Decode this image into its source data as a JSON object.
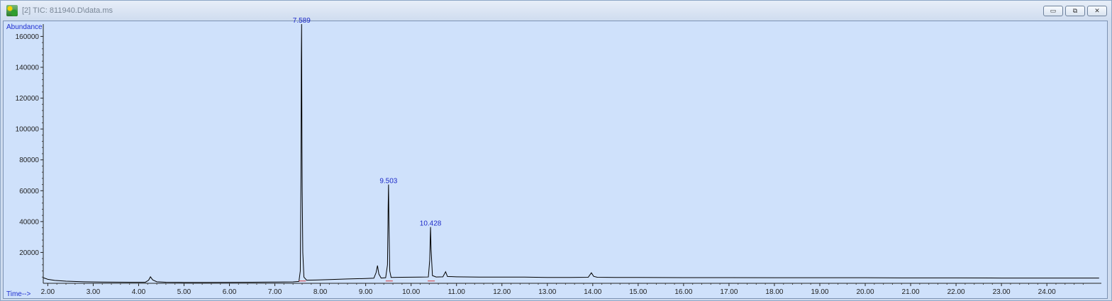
{
  "window": {
    "title": "[2] TIC: 811940.D\\data.ms",
    "buttons": [
      "minimize-icon",
      "restore-icon",
      "close-icon"
    ],
    "colors": {
      "plot_bg": "#cfe1fb",
      "trace": "#000000",
      "labels": "#1f2fd0"
    }
  },
  "chart_data": {
    "type": "line",
    "title": "",
    "xlabel": "Time-->",
    "ylabel": "Abundance",
    "xlim": [
      1.9,
      25.2
    ],
    "ylim": [
      0,
      168000
    ],
    "x_ticks": [
      "2.00",
      "3.00",
      "4.00",
      "5.00",
      "6.00",
      "7.00",
      "8.00",
      "9.00",
      "10.00",
      "11.00",
      "12.00",
      "13.00",
      "14.00",
      "15.00",
      "16.00",
      "17.00",
      "18.00",
      "19.00",
      "20.00",
      "21.00",
      "22.00",
      "23.00",
      "24.00"
    ],
    "y_ticks": [
      "20000",
      "40000",
      "60000",
      "80000",
      "100000",
      "120000",
      "140000",
      "160000"
    ],
    "grid": false,
    "series": [
      {
        "points": [
          [
            1.9,
            3600
          ],
          [
            2.0,
            2600
          ],
          [
            2.15,
            1900
          ],
          [
            2.4,
            1400
          ],
          [
            2.8,
            1000
          ],
          [
            3.2,
            800
          ],
          [
            3.8,
            700
          ],
          [
            4.15,
            700
          ],
          [
            4.22,
            2000
          ],
          [
            4.26,
            4200
          ],
          [
            4.31,
            2200
          ],
          [
            4.4,
            1000
          ],
          [
            4.6,
            700
          ],
          [
            5.0,
            600
          ],
          [
            5.5,
            600
          ],
          [
            6.0,
            650
          ],
          [
            6.5,
            700
          ],
          [
            7.0,
            800
          ],
          [
            7.4,
            900
          ],
          [
            7.53,
            1200
          ],
          [
            7.56,
            8000
          ],
          [
            7.575,
            70000
          ],
          [
            7.583,
            145000
          ],
          [
            7.589,
            168000
          ],
          [
            7.595,
            106000
          ],
          [
            7.602,
            60000
          ],
          [
            7.615,
            20000
          ],
          [
            7.64,
            4000
          ],
          [
            7.7,
            2000
          ],
          [
            7.9,
            2100
          ],
          [
            8.2,
            2400
          ],
          [
            8.6,
            2800
          ],
          [
            9.0,
            3100
          ],
          [
            9.18,
            3300
          ],
          [
            9.23,
            7000
          ],
          [
            9.26,
            11500
          ],
          [
            9.29,
            6000
          ],
          [
            9.34,
            3400
          ],
          [
            9.44,
            3600
          ],
          [
            9.48,
            12000
          ],
          [
            9.495,
            50000
          ],
          [
            9.503,
            64000
          ],
          [
            9.512,
            40000
          ],
          [
            9.53,
            8000
          ],
          [
            9.56,
            3800
          ],
          [
            9.8,
            3900
          ],
          [
            10.2,
            4000
          ],
          [
            10.38,
            4100
          ],
          [
            10.41,
            15000
          ],
          [
            10.428,
            36500
          ],
          [
            10.44,
            22000
          ],
          [
            10.47,
            5000
          ],
          [
            10.55,
            4100
          ],
          [
            10.7,
            4200
          ],
          [
            10.76,
            7500
          ],
          [
            10.8,
            4400
          ],
          [
            11.0,
            4200
          ],
          [
            11.5,
            4000
          ],
          [
            12.0,
            4000
          ],
          [
            12.5,
            4000
          ],
          [
            13.0,
            3800
          ],
          [
            13.5,
            3800
          ],
          [
            13.9,
            3900
          ],
          [
            13.97,
            6800
          ],
          [
            14.02,
            4500
          ],
          [
            14.1,
            3900
          ],
          [
            14.5,
            3800
          ],
          [
            15.0,
            3800
          ],
          [
            16.0,
            3700
          ],
          [
            17.0,
            3700
          ],
          [
            18.0,
            3600
          ],
          [
            19.0,
            3600
          ],
          [
            20.0,
            3600
          ],
          [
            21.0,
            3500
          ],
          [
            22.0,
            3500
          ],
          [
            23.0,
            3400
          ],
          [
            24.0,
            3400
          ],
          [
            25.0,
            3400
          ],
          [
            25.15,
            3400
          ]
        ]
      }
    ],
    "peaks": [
      {
        "x": 7.589,
        "y": 168000,
        "label": "7.589"
      },
      {
        "x": 9.503,
        "y": 64000,
        "label": "9.503"
      },
      {
        "x": 10.428,
        "y": 36500,
        "label": "10.428"
      }
    ]
  }
}
